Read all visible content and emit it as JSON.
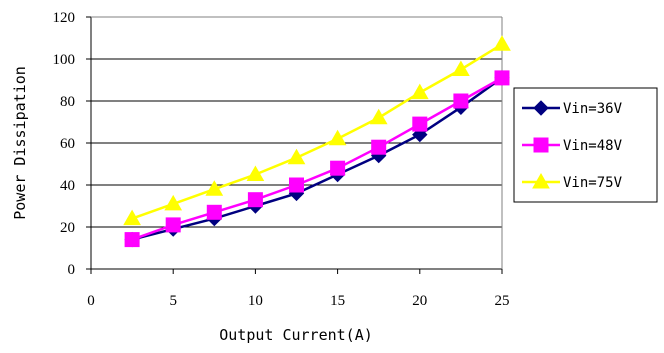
{
  "chart_data": {
    "type": "line",
    "xlabel": "Output Current(A)",
    "ylabel": "Power Dissipation",
    "xlim": [
      0,
      25
    ],
    "ylim": [
      0,
      120
    ],
    "x_ticks": [
      0,
      5,
      10,
      15,
      20,
      25
    ],
    "y_ticks": [
      0,
      20,
      40,
      60,
      80,
      100,
      120
    ],
    "grid": "horizontal",
    "legend_position": "right",
    "x": [
      2.5,
      5,
      7.5,
      10,
      12.5,
      15,
      17.5,
      20,
      22.5,
      25
    ],
    "series": [
      {
        "name": "Vin=36V",
        "color": "#000080",
        "marker": "diamond",
        "values": [
          14,
          19,
          24,
          30,
          36,
          45,
          54,
          64,
          77,
          91
        ]
      },
      {
        "name": "Vin=48V",
        "color": "#ff00ff",
        "marker": "square",
        "values": [
          14,
          21,
          27,
          33,
          40,
          48,
          58,
          69,
          80,
          91
        ]
      },
      {
        "name": "Vin=75V",
        "color": "#ffff00",
        "marker": "triangle",
        "values": [
          24,
          31,
          38,
          45,
          53,
          62,
          72,
          84,
          95,
          107
        ]
      }
    ]
  }
}
